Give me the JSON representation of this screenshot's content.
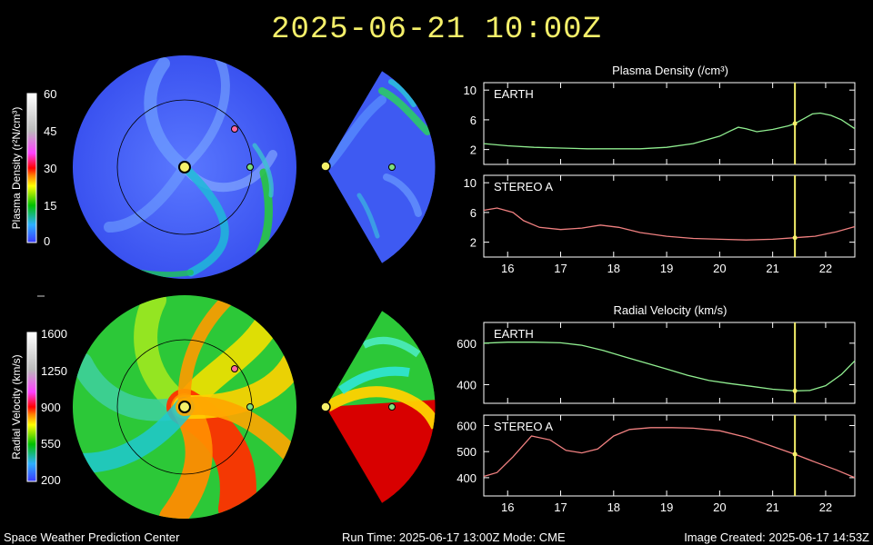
{
  "title": "2025-06-21 10:00Z",
  "footer": {
    "left": "Space Weather Prediction Center",
    "center": "Run Time: 2025-06-17 13:00Z  Mode: CME",
    "right": "Image Created: 2025-06-17 14:53Z"
  },
  "colorbars": {
    "density": {
      "label": "Plasma Density (r²N/cm³)",
      "ticks": [
        "60",
        "45",
        "30",
        "15",
        "0"
      ]
    },
    "velocity": {
      "label": "Radial Velocity (km/s)",
      "ticks": [
        "1600",
        "1250",
        "900",
        "550",
        "200"
      ]
    }
  },
  "colors": {
    "earth": "#90ee90",
    "stereo_a": "#f08080",
    "marker": "#f5f06a"
  },
  "chart_data": [
    {
      "type": "line",
      "title": "Plasma Density (/cm³)",
      "panel": "EARTH",
      "xlim": [
        15.55,
        22.55
      ],
      "ylim": [
        0,
        11
      ],
      "xticks": [
        16,
        17,
        18,
        19,
        20,
        21,
        22
      ],
      "yticks": [
        2,
        6,
        10
      ],
      "marker_x": 21.42,
      "series": [
        {
          "name": "EARTH",
          "color": "#90ee90",
          "x": [
            15.55,
            16,
            16.5,
            17,
            17.5,
            18,
            18.5,
            19,
            19.5,
            20,
            20.2,
            20.35,
            20.5,
            20.7,
            21,
            21.3,
            21.42,
            21.6,
            21.75,
            21.9,
            22.1,
            22.3,
            22.55
          ],
          "y": [
            2.8,
            2.5,
            2.3,
            2.2,
            2.1,
            2.1,
            2.1,
            2.3,
            2.8,
            3.8,
            4.5,
            5.0,
            4.8,
            4.4,
            4.7,
            5.2,
            5.5,
            6.2,
            6.8,
            6.9,
            6.6,
            6.0,
            4.8
          ]
        }
      ]
    },
    {
      "type": "line",
      "panel": "STEREO A",
      "xlim": [
        15.55,
        22.55
      ],
      "ylim": [
        0,
        11
      ],
      "xticks": [
        16,
        17,
        18,
        19,
        20,
        21,
        22
      ],
      "yticks": [
        2,
        6,
        10
      ],
      "marker_x": 21.42,
      "series": [
        {
          "name": "STEREO A",
          "color": "#f08080",
          "x": [
            15.55,
            15.8,
            16.1,
            16.3,
            16.6,
            17,
            17.4,
            17.75,
            18.1,
            18.5,
            19,
            19.5,
            20,
            20.5,
            21,
            21.42,
            21.8,
            22.2,
            22.55
          ],
          "y": [
            6.3,
            6.6,
            6.0,
            4.9,
            4.0,
            3.7,
            3.9,
            4.3,
            4.0,
            3.3,
            2.8,
            2.5,
            2.4,
            2.3,
            2.4,
            2.6,
            2.8,
            3.4,
            4.1
          ]
        }
      ]
    },
    {
      "type": "line",
      "title": "Radial Velocity (km/s)",
      "panel": "EARTH",
      "xlim": [
        15.55,
        22.55
      ],
      "ylim": [
        310,
        700
      ],
      "xticks": [
        16,
        17,
        18,
        19,
        20,
        21,
        22
      ],
      "yticks": [
        400,
        600
      ],
      "marker_x": 21.42,
      "series": [
        {
          "name": "EARTH",
          "color": "#90ee90",
          "x": [
            15.55,
            16,
            16.5,
            17,
            17.4,
            17.8,
            18.2,
            18.6,
            19,
            19.4,
            19.8,
            20.2,
            20.6,
            21,
            21.42,
            21.7,
            22,
            22.3,
            22.55
          ],
          "y": [
            600,
            605,
            605,
            602,
            590,
            565,
            535,
            505,
            475,
            445,
            420,
            405,
            392,
            378,
            370,
            372,
            395,
            450,
            515
          ]
        }
      ]
    },
    {
      "type": "line",
      "panel": "STEREO A",
      "xlim": [
        15.55,
        22.55
      ],
      "ylim": [
        330,
        640
      ],
      "xticks": [
        16,
        17,
        18,
        19,
        20,
        21,
        22
      ],
      "yticks": [
        400,
        500,
        600
      ],
      "marker_x": 21.42,
      "series": [
        {
          "name": "STEREO A",
          "color": "#f08080",
          "x": [
            15.55,
            15.8,
            16.1,
            16.45,
            16.8,
            17.1,
            17.4,
            17.7,
            18,
            18.3,
            18.7,
            19.1,
            19.5,
            20,
            20.5,
            21,
            21.42,
            21.8,
            22.2,
            22.55
          ],
          "y": [
            405,
            420,
            480,
            560,
            545,
            505,
            495,
            510,
            560,
            585,
            592,
            592,
            590,
            580,
            555,
            520,
            490,
            460,
            430,
            400
          ]
        }
      ]
    }
  ]
}
